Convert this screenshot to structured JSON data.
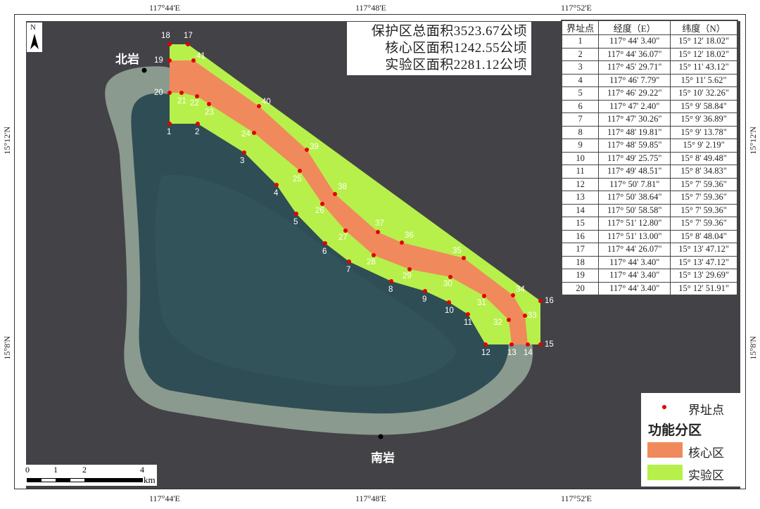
{
  "map": {
    "north_label": "N",
    "top_ticks": [
      "117°44'E",
      "117°48'E",
      "117°52'E"
    ],
    "bottom_ticks": [
      "117°44'E",
      "117°48'E",
      "117°52'E"
    ],
    "left_ticks": [
      "15°12'N",
      "15°8'N"
    ],
    "right_ticks": [
      "15°12'N",
      "15°8'N"
    ],
    "places": {
      "north_rock": "北岩",
      "south_rock": "南岩"
    },
    "colors": {
      "core": "#f08a5d",
      "experimental": "#b7f04a",
      "boundary_point": "#e00000",
      "sea": "#434247"
    },
    "boundary_point_labels": [
      "1",
      "2",
      "3",
      "4",
      "5",
      "6",
      "7",
      "8",
      "9",
      "10",
      "11",
      "12",
      "13",
      "14",
      "15",
      "16",
      "17",
      "18",
      "19",
      "20",
      "21",
      "22",
      "23",
      "24",
      "25",
      "26",
      "27",
      "28",
      "29",
      "30",
      "31",
      "32",
      "33",
      "34",
      "35",
      "36",
      "37",
      "38",
      "39",
      "40",
      "41"
    ]
  },
  "areas": {
    "total": "保护区总面积3523.67公顷",
    "core": "核心区面积1242.55公顷",
    "experimental": "实验区面积2281.12公顷"
  },
  "table": {
    "headers": [
      "界址点",
      "经度（E）",
      "纬度（N）"
    ],
    "rows": [
      [
        "1",
        "117° 44' 3.40\"",
        "15° 12' 18.02\""
      ],
      [
        "2",
        "117° 44' 36.07\"",
        "15° 12' 18.02\""
      ],
      [
        "3",
        "117° 45' 29.71\"",
        "15° 11' 43.12\""
      ],
      [
        "4",
        "117° 46' 7.79\"",
        "15° 11' 5.62\""
      ],
      [
        "5",
        "117° 46' 29.22\"",
        "15° 10' 32.26\""
      ],
      [
        "6",
        "117° 47' 2.40\"",
        "15° 9' 58.84\""
      ],
      [
        "7",
        "117° 47' 30.26\"",
        "15° 9' 36.89\""
      ],
      [
        "8",
        "117° 48' 19.81\"",
        "15° 9' 13.78\""
      ],
      [
        "9",
        "117° 48' 59.85\"",
        "15° 9' 2.19\""
      ],
      [
        "10",
        "117° 49' 25.75\"",
        "15° 8' 49.48\""
      ],
      [
        "11",
        "117° 49' 48.51\"",
        "15° 8' 34.83\""
      ],
      [
        "12",
        "117° 50' 7.81\"",
        "15° 7' 59.36\""
      ],
      [
        "13",
        "117° 50' 38.64\"",
        "15° 7' 59.36\""
      ],
      [
        "14",
        "117° 50' 58.58\"",
        "15° 7' 59.36\""
      ],
      [
        "15",
        "117° 51' 12.80\"",
        "15° 7' 59.36\""
      ],
      [
        "16",
        "117° 51' 13.00\"",
        "15° 8' 48.04\""
      ],
      [
        "17",
        "117° 44' 26.07\"",
        "15° 13' 47.12\""
      ],
      [
        "18",
        "117° 44' 3.40\"",
        "15° 13' 47.12\""
      ],
      [
        "19",
        "117° 44' 3.40\"",
        "15° 13' 29.69\""
      ],
      [
        "20",
        "117° 44' 3.40\"",
        "15° 12' 51.91\""
      ]
    ]
  },
  "legend": {
    "point": "界址点",
    "title": "功能分区",
    "core": "核心区",
    "experimental": "实验区"
  },
  "scale": {
    "labels": [
      "0",
      "1",
      "2",
      "4"
    ],
    "unit": "km"
  }
}
